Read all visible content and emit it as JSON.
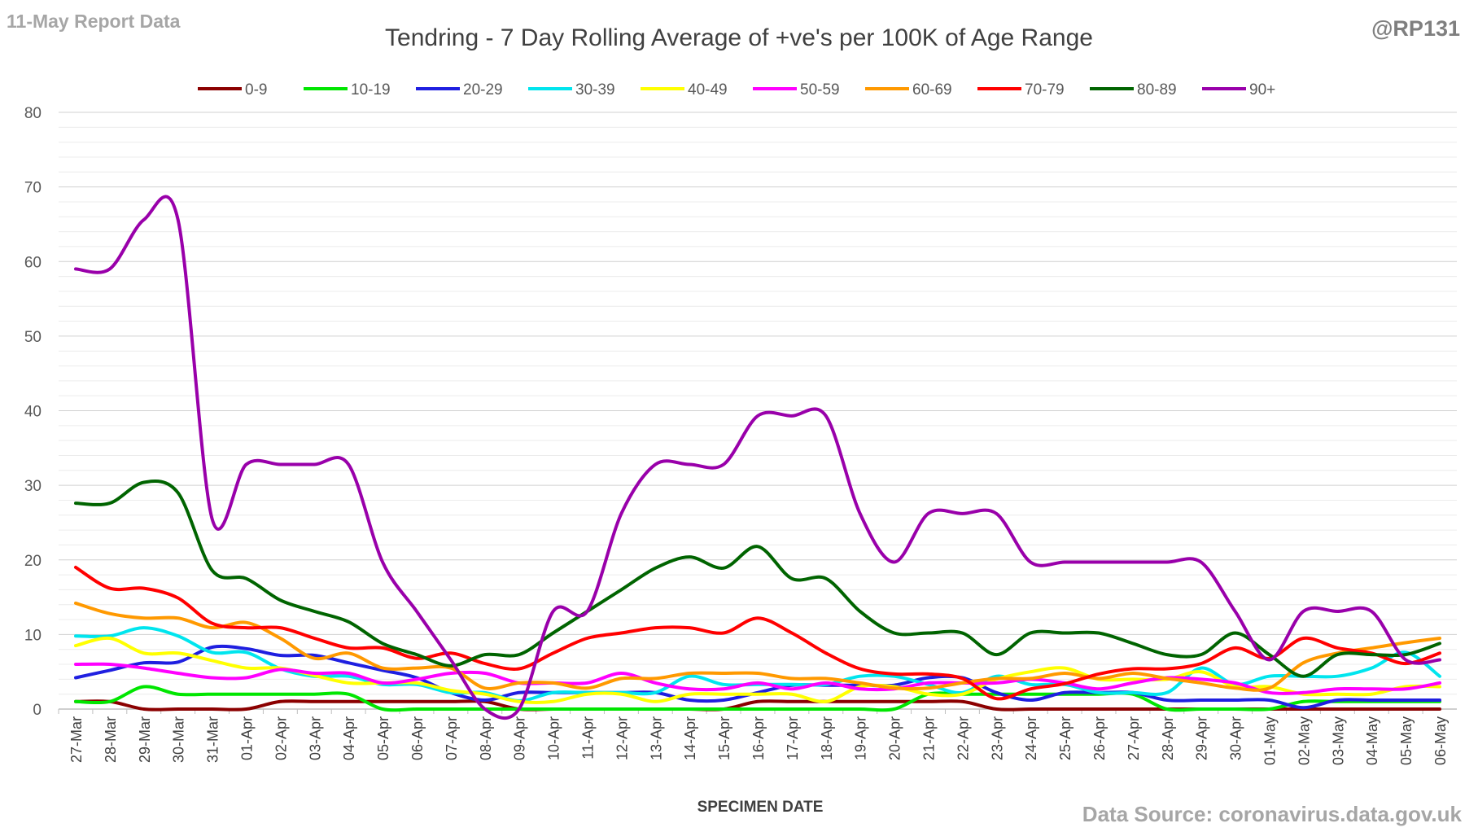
{
  "header": {
    "report_label": "11-May Report Data",
    "handle": "@RP131",
    "source": "Data Source: coronavirus.data.gov.uk"
  },
  "chart_data": {
    "type": "line",
    "title": "Tendring - 7 Day Rolling Average of +ve's per 100K of Age Range",
    "xlabel": "SPECIMEN DATE",
    "ylabel": "",
    "ylim": [
      0,
      80
    ],
    "yticks": [
      0,
      10,
      20,
      30,
      40,
      50,
      60,
      70,
      80
    ],
    "grid": true,
    "legend_position": "top",
    "categories": [
      "27-Mar",
      "28-Mar",
      "29-Mar",
      "30-Mar",
      "31-Mar",
      "01-Apr",
      "02-Apr",
      "03-Apr",
      "04-Apr",
      "05-Apr",
      "06-Apr",
      "07-Apr",
      "08-Apr",
      "09-Apr",
      "10-Apr",
      "11-Apr",
      "12-Apr",
      "13-Apr",
      "14-Apr",
      "15-Apr",
      "16-Apr",
      "17-Apr",
      "18-Apr",
      "19-Apr",
      "20-Apr",
      "21-Apr",
      "22-Apr",
      "23-Apr",
      "24-Apr",
      "25-Apr",
      "26-Apr",
      "27-Apr",
      "28-Apr",
      "29-Apr",
      "30-Apr",
      "01-May",
      "02-May",
      "03-May",
      "04-May",
      "05-May",
      "06-May"
    ],
    "series": [
      {
        "name": "0-9",
        "color": "#8b0000",
        "values": [
          1,
          1,
          0,
          0,
          0,
          0,
          1,
          1,
          1,
          1,
          1,
          1,
          1,
          0,
          0,
          0,
          0,
          0,
          0,
          0,
          1,
          1,
          1,
          1,
          1,
          1,
          1,
          0,
          0,
          0,
          0,
          0,
          0,
          0,
          0,
          0,
          0,
          0,
          0,
          0,
          0
        ]
      },
      {
        "name": "10-19",
        "color": "#00e600",
        "values": [
          1,
          1,
          3,
          2,
          2,
          2,
          2,
          2,
          2,
          0,
          0,
          0,
          0,
          0,
          0,
          0,
          0,
          0,
          0,
          0,
          0,
          0,
          0,
          0,
          0,
          2,
          2,
          2,
          2,
          2,
          2,
          2,
          0,
          0,
          0,
          0,
          1,
          1,
          1,
          1,
          1
        ]
      },
      {
        "name": "20-29",
        "color": "#1f1fe0",
        "values": [
          4.2,
          5.2,
          6.2,
          6.3,
          8.3,
          8.1,
          7.2,
          7.2,
          6.2,
          5.2,
          4.2,
          2.2,
          1.2,
          2.2,
          2.2,
          2.2,
          2.2,
          2.2,
          1.2,
          1.2,
          2.2,
          3.2,
          3.2,
          3.2,
          3.2,
          4.2,
          4.2,
          2.2,
          1.2,
          2.2,
          2.2,
          2.2,
          1.2,
          1.2,
          1.2,
          1.2,
          0.2,
          1.2,
          1.2,
          1.2,
          1.2
        ]
      },
      {
        "name": "30-39",
        "color": "#00e5ee",
        "values": [
          9.8,
          9.8,
          10.9,
          9.8,
          7.6,
          7.6,
          5.4,
          4.4,
          4.4,
          3.3,
          3.3,
          2.2,
          2.2,
          1.1,
          2.2,
          2.2,
          2.2,
          2.2,
          4.4,
          3.3,
          3.3,
          3.3,
          3.3,
          4.4,
          4.4,
          3.3,
          2.2,
          4.4,
          3.3,
          3.3,
          2.2,
          2.2,
          2.2,
          5.5,
          3.3,
          4.4,
          4.4,
          4.4,
          5.5,
          7.6,
          4.4
        ]
      },
      {
        "name": "40-49",
        "color": "#ffff00",
        "values": [
          8.5,
          9.5,
          7.5,
          7.5,
          6.5,
          5.5,
          5.5,
          4.5,
          3.5,
          3.5,
          3.5,
          2.5,
          2,
          1,
          1,
          2,
          2,
          1,
          2,
          2,
          2,
          2,
          1,
          3,
          3,
          2,
          2,
          4,
          5,
          5.5,
          4,
          4,
          4,
          5,
          3,
          3,
          2,
          2,
          2,
          3,
          3
        ]
      },
      {
        "name": "50-59",
        "color": "#ff00ff",
        "values": [
          6,
          6,
          5.5,
          4.8,
          4.2,
          4.2,
          5.3,
          4.8,
          4.8,
          3.5,
          4,
          4.8,
          4.8,
          3.5,
          3.5,
          3.5,
          4.8,
          3.5,
          2.7,
          2.7,
          3.5,
          2.7,
          3.5,
          2.7,
          2.7,
          3.5,
          3.5,
          3.5,
          4,
          3.5,
          2.7,
          3.5,
          4.2,
          4,
          3.5,
          2.2,
          2.2,
          2.7,
          2.7,
          2.7,
          3.5
        ]
      },
      {
        "name": "60-69",
        "color": "#ff9900",
        "values": [
          14.2,
          12.8,
          12.2,
          12.2,
          10.9,
          11.6,
          9.5,
          6.8,
          7.5,
          5.5,
          5.5,
          5.5,
          2.8,
          3.5,
          3.5,
          2.8,
          4.1,
          4.1,
          4.8,
          4.8,
          4.8,
          4.1,
          4.1,
          3.5,
          2.8,
          2.8,
          3.5,
          4.1,
          4.1,
          4.8,
          4.1,
          4.8,
          4.1,
          3.5,
          2.8,
          2.8,
          6.2,
          7.5,
          8.2,
          8.9,
          9.5
        ]
      },
      {
        "name": "70-79",
        "color": "#ff0000",
        "values": [
          19,
          16.2,
          16.2,
          14.9,
          11.5,
          10.9,
          10.9,
          9.5,
          8.2,
          8.2,
          6.8,
          7.5,
          6.1,
          5.4,
          7.5,
          9.5,
          10.2,
          10.9,
          10.9,
          10.2,
          12.2,
          10.2,
          7.5,
          5.4,
          4.7,
          4.7,
          4.1,
          1.4,
          2.7,
          3.4,
          4.7,
          5.4,
          5.4,
          6.1,
          8.2,
          6.8,
          9.5,
          8.2,
          7.5,
          6.1,
          7.5
        ]
      },
      {
        "name": "80-89",
        "color": "#006400",
        "values": [
          27.6,
          27.6,
          30.4,
          29,
          18.6,
          17.5,
          14.6,
          13.1,
          11.7,
          8.8,
          7.3,
          5.8,
          7.3,
          7.3,
          10.2,
          13.1,
          16,
          18.9,
          20.4,
          18.9,
          21.8,
          17.5,
          17.5,
          13.1,
          10.2,
          10.2,
          10.2,
          7.3,
          10.2,
          10.2,
          10.2,
          8.8,
          7.3,
          7.3,
          10.2,
          7.3,
          4.4,
          7.3,
          7.3,
          7.3,
          8.8
        ]
      },
      {
        "name": "90+",
        "color": "#9900aa",
        "values": [
          59,
          59,
          65.6,
          65.6,
          25.5,
          32.8,
          32.8,
          32.8,
          32.8,
          19.7,
          13.1,
          6.6,
          0,
          0,
          13.1,
          13.1,
          26.2,
          32.8,
          32.8,
          32.8,
          39.3,
          39.3,
          39.3,
          26.2,
          19.7,
          26.2,
          26.2,
          26.2,
          19.7,
          19.7,
          19.7,
          19.7,
          19.7,
          19.7,
          13.1,
          6.6,
          13.1,
          13.1,
          13.1,
          6.6,
          6.6
        ]
      }
    ]
  }
}
